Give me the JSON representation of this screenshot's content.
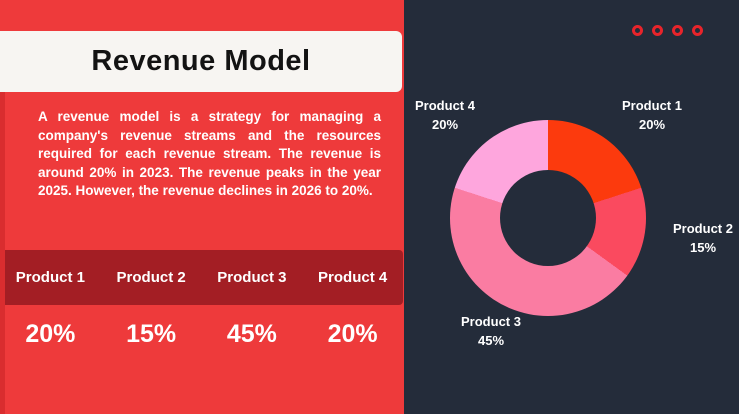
{
  "slide": {
    "title": "Revenue Model",
    "body_text": "A revenue model is a strategy for managing a company's revenue streams and the resources required for each revenue stream. The revenue is around 20% in 2023. The revenue peaks in the year 2025. However, the revenue declines in 2026 to 20%.",
    "table": {
      "headers": [
        "Product 1",
        "Product 2",
        "Product 3",
        "Product 4"
      ],
      "values": [
        "20%",
        "15%",
        "45%",
        "20%"
      ]
    },
    "decor_rings_count": 4
  },
  "chart_data": {
    "type": "pie",
    "subtype": "donut",
    "categories": [
      "Product 1",
      "Product 2",
      "Product 3",
      "Product 4"
    ],
    "values": [
      20,
      15,
      45,
      20
    ],
    "value_labels": [
      "20%",
      "15%",
      "45%",
      "20%"
    ],
    "unit": "%",
    "colors": [
      "#FC3A0D",
      "#FA4A5F",
      "#FA7CA2",
      "#FEA6DD"
    ],
    "start_angle_deg": 0,
    "direction": "clockwise",
    "hole_ratio": 0.49,
    "legend": "labels-around-chart"
  },
  "colors": {
    "panel_red": "#EE3A3B",
    "accent_dark_red": "#D92D2F",
    "table_header_red": "#A31E24",
    "title_bar_bg": "#F7F5F2",
    "title_text": "#131313",
    "right_panel_bg": "#242C3A",
    "ring_outline": "#E8242B",
    "text_white": "#FFFFFF"
  }
}
